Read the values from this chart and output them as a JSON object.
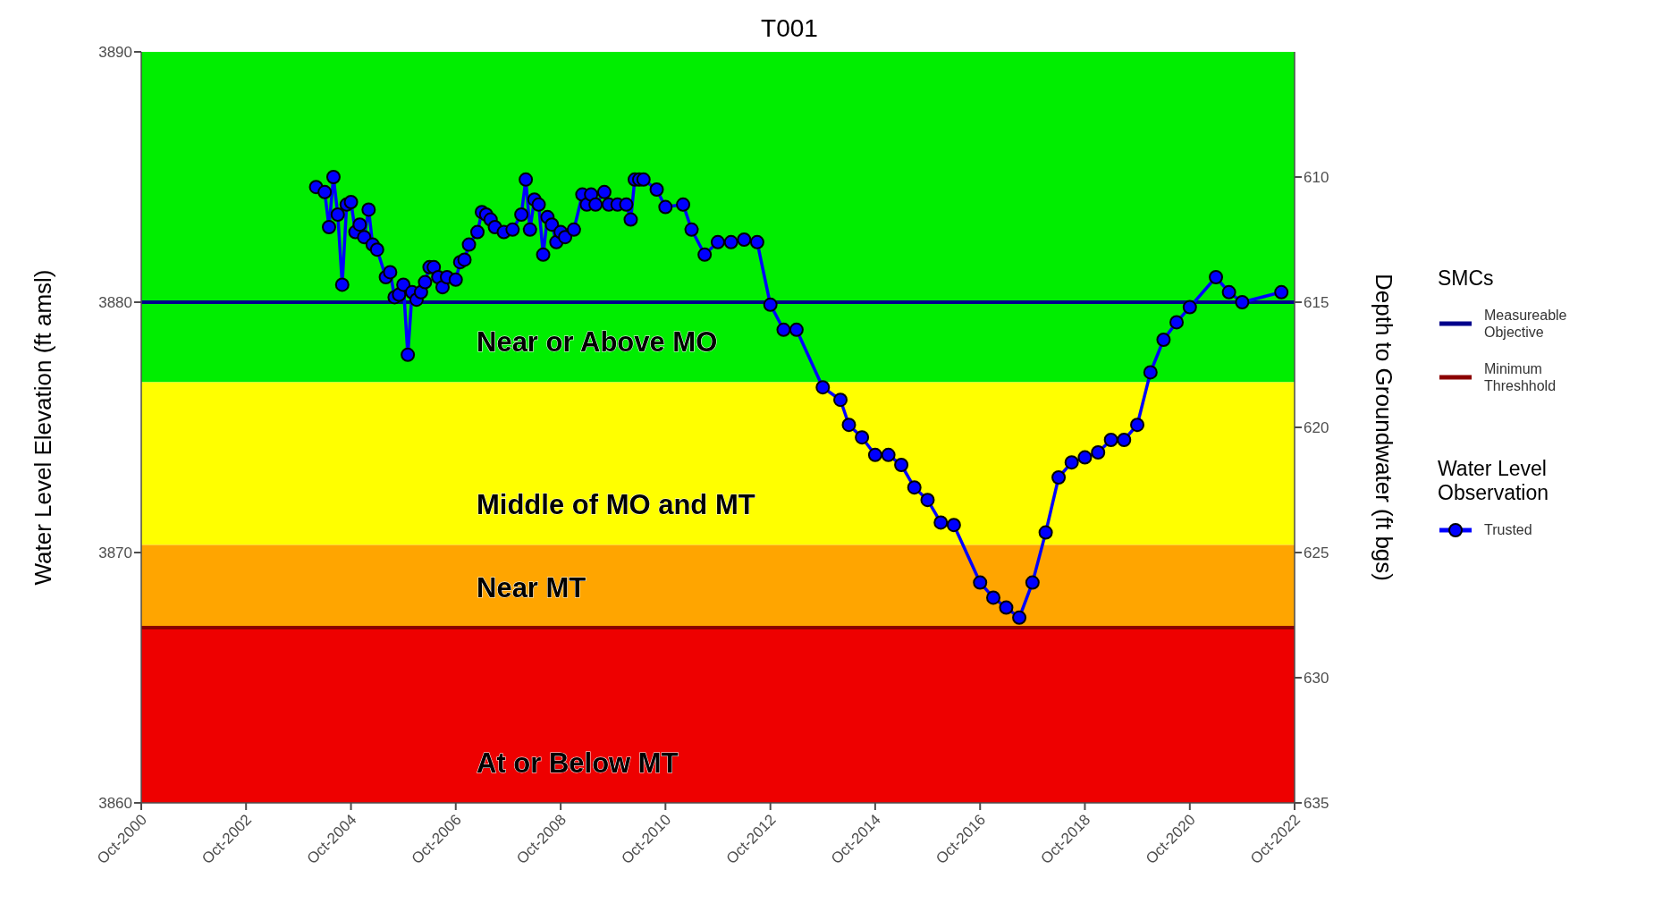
{
  "chart_data": {
    "type": "line",
    "title": "T001",
    "xlabel": null,
    "ylabel": "Water Level Elevation (ft amsl)",
    "y2label": "Depth to Groundwater (ft bgs)",
    "legend_title": "SMCs",
    "annotations": [
      "Water Level Observation"
    ],
    "x": [
      "2004-02",
      "2004-04",
      "2004-05",
      "2004-06",
      "2004-07",
      "2004-08",
      "2004-09",
      "2004-10",
      "2004-11",
      "2004-12",
      "2005-01",
      "2005-02",
      "2005-03",
      "2005-04",
      "2005-06",
      "2005-07",
      "2005-08",
      "2005-09",
      "2005-10",
      "2005-11",
      "2005-12",
      "2006-01",
      "2006-02",
      "2006-03",
      "2006-04",
      "2006-05",
      "2006-06",
      "2006-07",
      "2006-08",
      "2006-10",
      "2006-11",
      "2006-12",
      "2007-01",
      "2007-03",
      "2007-04",
      "2007-05",
      "2007-06",
      "2007-07",
      "2007-09",
      "2007-11",
      "2008-01",
      "2008-02",
      "2008-03",
      "2008-04",
      "2008-05",
      "2008-06",
      "2008-07",
      "2008-08",
      "2008-09",
      "2008-10",
      "2008-11",
      "2009-01",
      "2009-03",
      "2009-04",
      "2009-05",
      "2009-06",
      "2009-08",
      "2009-09",
      "2009-11",
      "2010-01",
      "2010-02",
      "2010-03",
      "2010-04",
      "2010-05",
      "2010-08",
      "2010-10",
      "2011-02",
      "2011-04",
      "2011-07",
      "2011-10",
      "2012-01",
      "2012-04",
      "2012-07",
      "2012-10",
      "2013-01",
      "2013-04",
      "2013-10",
      "2014-02",
      "2014-04",
      "2014-07",
      "2014-10",
      "2015-01",
      "2015-04",
      "2015-07",
      "2015-10",
      "2016-01",
      "2016-04",
      "2016-10",
      "2017-01",
      "2017-04",
      "2017-07",
      "2017-10",
      "2018-01",
      "2018-04",
      "2018-07",
      "2018-10",
      "2019-01",
      "2019-04",
      "2019-07",
      "2019-10",
      "2020-01",
      "2020-04",
      "2020-07",
      "2020-10",
      "2021-04",
      "2021-07",
      "2021-10",
      "2022-07"
    ],
    "series": [
      {
        "name": "Trusted",
        "color": "#0000ff",
        "values": [
          3884.6,
          3884.4,
          3883.0,
          3885.0,
          3883.5,
          3880.7,
          3883.9,
          3884.0,
          3882.8,
          3883.1,
          3882.6,
          3883.7,
          3882.3,
          3882.1,
          3881.0,
          3881.2,
          3880.2,
          3880.3,
          3880.7,
          3877.9,
          3880.4,
          3880.1,
          3880.4,
          3880.8,
          3881.4,
          3881.4,
          3881.0,
          3880.6,
          3881.0,
          3880.9,
          3881.6,
          3881.7,
          3882.3,
          3882.8,
          3883.6,
          3883.5,
          3883.3,
          3883.0,
          3882.8,
          3882.9,
          3883.5,
          3884.9,
          3882.9,
          3884.1,
          3883.9,
          3881.9,
          3883.4,
          3883.1,
          3882.4,
          3882.8,
          3882.6,
          3882.9,
          3884.3,
          3883.9,
          3884.3,
          3883.9,
          3884.4,
          3883.9,
          3883.9,
          3883.9,
          3883.3,
          3884.9,
          3884.9,
          3884.9,
          3884.5,
          3883.8,
          3883.9,
          3882.9,
          3881.9,
          3882.4,
          3882.4,
          3882.5,
          3882.4,
          3879.9,
          3878.9,
          3878.9,
          3876.6,
          3876.1,
          3875.1,
          3874.6,
          3873.9,
          3873.9,
          3873.5,
          3872.6,
          3872.1,
          3871.2,
          3871.1,
          3868.8,
          3868.2,
          3867.8,
          3867.4,
          3868.8,
          3870.8,
          3873.0,
          3873.6,
          3873.8,
          3874.0,
          3874.5,
          3874.5,
          3875.1,
          3877.2,
          3878.5,
          3879.2,
          3879.8,
          3881.0,
          3880.4,
          3880.0,
          3880.4
        ]
      }
    ],
    "xlim": [
      "2000-10",
      "2022-10"
    ],
    "xticks": [
      {
        "value": "2000-10",
        "label": "Oct-2000"
      },
      {
        "value": "2002-10",
        "label": "Oct-2002"
      },
      {
        "value": "2004-10",
        "label": "Oct-2004"
      },
      {
        "value": "2006-10",
        "label": "Oct-2006"
      },
      {
        "value": "2008-10",
        "label": "Oct-2008"
      },
      {
        "value": "2010-10",
        "label": "Oct-2010"
      },
      {
        "value": "2012-10",
        "label": "Oct-2012"
      },
      {
        "value": "2014-10",
        "label": "Oct-2014"
      },
      {
        "value": "2016-10",
        "label": "Oct-2016"
      },
      {
        "value": "2018-10",
        "label": "Oct-2018"
      },
      {
        "value": "2020-10",
        "label": "Oct-2020"
      },
      {
        "value": "2022-10",
        "label": "Oct-2022"
      }
    ],
    "ylim": [
      3860,
      3890
    ],
    "yticks": [
      3860,
      3870,
      3880,
      3890
    ],
    "y2lim": [
      635,
      605
    ],
    "y2ticks": [
      610,
      615,
      620,
      625,
      630,
      635
    ],
    "bands": [
      {
        "axis": "y",
        "from": 3876.8,
        "to": 3890,
        "label": "Near or Above MO",
        "color": "#00ee00"
      },
      {
        "axis": "y",
        "from": 3870.3,
        "to": 3876.8,
        "label": "Middle of MO and MT",
        "color": "#ffff00"
      },
      {
        "axis": "y",
        "from": 3867,
        "to": 3870.3,
        "label": "Near MT",
        "color": "#ffa500"
      },
      {
        "axis": "y",
        "from": 3860,
        "to": 3867,
        "label": "At or Below MT",
        "color": "#ee0000"
      }
    ],
    "ref_lines": [
      {
        "axis": "y",
        "value": 3880,
        "label": "Measureable Objective",
        "color": "#00008b",
        "line_style": "solid"
      },
      {
        "axis": "y",
        "value": 3867,
        "label": "Minimum Threshhold",
        "color": "#8b0000",
        "line_style": "solid"
      }
    ],
    "grid": false,
    "legend": "right",
    "marker": "circle",
    "line_style": "solid"
  }
}
